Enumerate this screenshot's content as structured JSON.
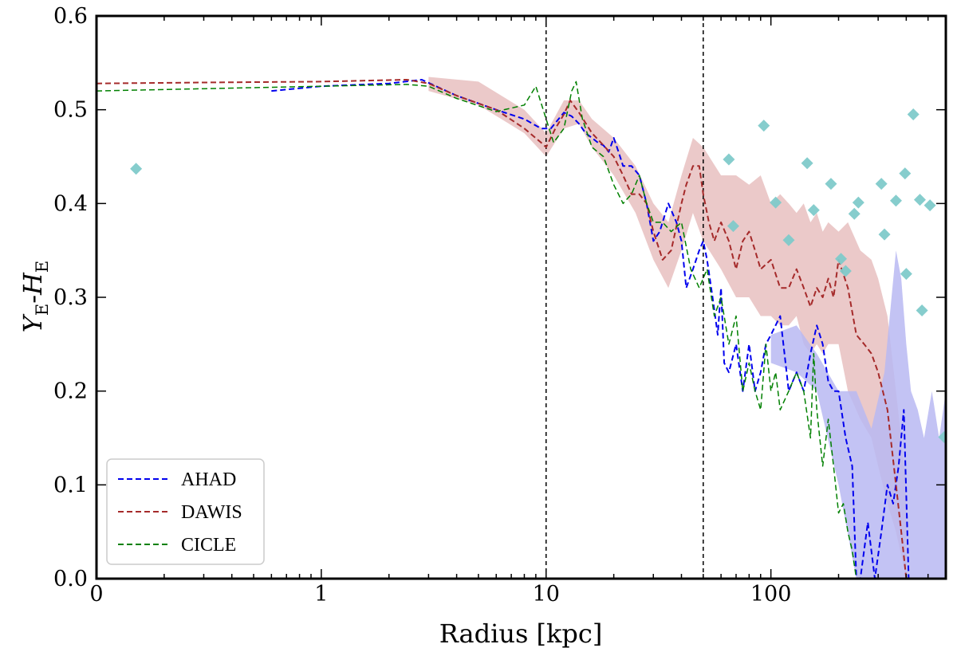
{
  "chart_data": {
    "type": "line",
    "xscale": "log",
    "xlim": [
      0.1,
      600
    ],
    "ylim": [
      0.0,
      0.6
    ],
    "xlabel": "Radius [kpc]",
    "ylabel": {
      "y": "Y",
      "ysub": "E",
      "sep": "-",
      "h": "H",
      "hsub": "E"
    },
    "xticks": [
      {
        "value": 0.1,
        "label": "0"
      },
      {
        "value": 1,
        "label": "1"
      },
      {
        "value": 10,
        "label": "10"
      },
      {
        "value": 100,
        "label": "100"
      }
    ],
    "yticks": [
      0.0,
      0.1,
      0.2,
      0.3,
      0.4,
      0.5,
      0.6
    ],
    "ytick_labels": [
      "0.0",
      "0.1",
      "0.2",
      "0.3",
      "0.4",
      "0.5",
      "0.6"
    ],
    "vlines": [
      10,
      50
    ],
    "legend_position": "lower-left",
    "colors": {
      "ahad": "#0000ee",
      "ahad_band": "#b8b8f2",
      "dawis": "#a52a2a",
      "dawis_band": "#e8c0c0",
      "cicle": "#008000",
      "scatter": "#7fcaca",
      "vline": "#000000"
    },
    "series": [
      {
        "name": "AHAD",
        "style": "dashed",
        "x": [
          0.6,
          1,
          2,
          2.8,
          4,
          6,
          8,
          9.5,
          10.5,
          12,
          13,
          14,
          15,
          16,
          17,
          18,
          19,
          20,
          21,
          22,
          24,
          26,
          28,
          30,
          32,
          35,
          38,
          40,
          42,
          45,
          48,
          50,
          52,
          55,
          58,
          60,
          62,
          65,
          70,
          75,
          80,
          85,
          90,
          95,
          100,
          110,
          120,
          130,
          140,
          150,
          160,
          170,
          180,
          190,
          200,
          215,
          230,
          240,
          250,
          270,
          290,
          310,
          330,
          350,
          370,
          390,
          410
        ],
        "y": [
          0.52,
          0.525,
          0.528,
          0.532,
          0.515,
          0.5,
          0.49,
          0.48,
          0.48,
          0.497,
          0.493,
          0.485,
          0.475,
          0.47,
          0.465,
          0.462,
          0.455,
          0.47,
          0.455,
          0.44,
          0.44,
          0.43,
          0.4,
          0.36,
          0.37,
          0.4,
          0.38,
          0.36,
          0.31,
          0.33,
          0.35,
          0.36,
          0.34,
          0.3,
          0.26,
          0.31,
          0.23,
          0.22,
          0.25,
          0.2,
          0.25,
          0.2,
          0.22,
          0.25,
          0.26,
          0.28,
          0.2,
          0.22,
          0.2,
          0.24,
          0.27,
          0.25,
          0.21,
          0.2,
          0.2,
          0.15,
          0.12,
          0.0,
          0.0,
          0.06,
          0.0,
          0.05,
          0.1,
          0.08,
          0.12,
          0.18,
          0.0
        ]
      },
      {
        "name": "DAWIS",
        "style": "dashed",
        "x": [
          0.1,
          0.3,
          1,
          2.4,
          3,
          4,
          6,
          8,
          9.5,
          10,
          11,
          12,
          12.8,
          14,
          16,
          18,
          20,
          22,
          24,
          26,
          28,
          30,
          33,
          36,
          40,
          42,
          45,
          48,
          50,
          53,
          56,
          60,
          65,
          70,
          75,
          80,
          85,
          90,
          100,
          110,
          120,
          130,
          140,
          150,
          160,
          170,
          180,
          190,
          200,
          220,
          240,
          260,
          280,
          300,
          330,
          360,
          380,
          400
        ],
        "y": [
          0.528,
          0.529,
          0.53,
          0.532,
          0.528,
          0.515,
          0.5,
          0.48,
          0.465,
          0.46,
          0.48,
          0.495,
          0.51,
          0.497,
          0.475,
          0.462,
          0.45,
          0.43,
          0.41,
          0.41,
          0.4,
          0.37,
          0.34,
          0.35,
          0.4,
          0.42,
          0.44,
          0.44,
          0.41,
          0.38,
          0.36,
          0.38,
          0.36,
          0.33,
          0.36,
          0.37,
          0.35,
          0.33,
          0.34,
          0.31,
          0.31,
          0.33,
          0.31,
          0.29,
          0.31,
          0.3,
          0.32,
          0.3,
          0.34,
          0.31,
          0.26,
          0.25,
          0.24,
          0.22,
          0.18,
          0.1,
          0.05,
          0.0
        ]
      },
      {
        "name": "CICLE",
        "style": "dashed",
        "x": [
          0.1,
          1,
          2.4,
          3,
          4,
          6,
          8,
          9,
          10,
          10.8,
          12,
          13,
          13.6,
          14.5,
          16,
          18,
          20,
          22,
          24,
          26,
          28,
          30,
          33,
          36,
          40,
          44,
          48,
          52,
          56,
          60,
          65,
          70,
          75,
          80,
          85,
          90,
          95,
          100,
          105,
          110,
          120,
          130,
          140,
          150,
          155,
          160,
          170,
          180,
          190,
          200,
          210,
          220,
          230,
          240
        ],
        "y": [
          0.52,
          0.525,
          0.527,
          0.525,
          0.512,
          0.498,
          0.505,
          0.525,
          0.49,
          0.465,
          0.48,
          0.52,
          0.53,
          0.49,
          0.46,
          0.45,
          0.42,
          0.4,
          0.41,
          0.43,
          0.4,
          0.38,
          0.38,
          0.37,
          0.38,
          0.33,
          0.31,
          0.33,
          0.28,
          0.3,
          0.25,
          0.28,
          0.2,
          0.23,
          0.2,
          0.18,
          0.25,
          0.2,
          0.22,
          0.18,
          0.2,
          0.22,
          0.2,
          0.15,
          0.24,
          0.18,
          0.12,
          0.17,
          0.12,
          0.07,
          0.08,
          0.05,
          0.03,
          0.0
        ]
      }
    ],
    "bands": [
      {
        "name": "DAWIS-band",
        "x": [
          3,
          5,
          8,
          10,
          12,
          14,
          16,
          20,
          25,
          30,
          35,
          40,
          45,
          50,
          60,
          70,
          80,
          90,
          100,
          110,
          120,
          130,
          140,
          150,
          160,
          170,
          180,
          200,
          220,
          250,
          280,
          300,
          330,
          360,
          400
        ],
        "lower": [
          0.52,
          0.505,
          0.475,
          0.45,
          0.48,
          0.485,
          0.46,
          0.43,
          0.39,
          0.34,
          0.31,
          0.35,
          0.39,
          0.36,
          0.33,
          0.3,
          0.3,
          0.28,
          0.28,
          0.27,
          0.27,
          0.28,
          0.25,
          0.24,
          0.25,
          0.24,
          0.25,
          0.25,
          0.2,
          0.17,
          0.15,
          0.12,
          0.08,
          0.05,
          0.0
        ],
        "upper": [
          0.535,
          0.53,
          0.5,
          0.475,
          0.51,
          0.51,
          0.49,
          0.47,
          0.44,
          0.4,
          0.38,
          0.43,
          0.47,
          0.46,
          0.43,
          0.43,
          0.42,
          0.43,
          0.4,
          0.41,
          0.4,
          0.39,
          0.4,
          0.38,
          0.39,
          0.37,
          0.38,
          0.37,
          0.38,
          0.35,
          0.34,
          0.32,
          0.28,
          0.2,
          0.1
        ]
      },
      {
        "name": "AHAD-band",
        "x": [
          100,
          130,
          160,
          200,
          240,
          280,
          320,
          360,
          380,
          400,
          420,
          450,
          480,
          520,
          560,
          600
        ],
        "lower": [
          0.23,
          0.22,
          0.2,
          0.1,
          0.0,
          0.0,
          0.0,
          0.0,
          0.0,
          0.0,
          0.0,
          0.0,
          0.0,
          0.0,
          0.0,
          0.0
        ],
        "upper": [
          0.26,
          0.27,
          0.24,
          0.2,
          0.2,
          0.16,
          0.22,
          0.35,
          0.32,
          0.25,
          0.2,
          0.18,
          0.15,
          0.2,
          0.15,
          0.2
        ]
      }
    ],
    "scatter": {
      "name": "points",
      "x": [
        0.15,
        65,
        68,
        93,
        105,
        120,
        145,
        155,
        185,
        205,
        215,
        235,
        245,
        310,
        320,
        360,
        395,
        400,
        430,
        460,
        470,
        510,
        590
      ],
      "y": [
        0.437,
        0.447,
        0.376,
        0.483,
        0.401,
        0.361,
        0.443,
        0.393,
        0.421,
        0.341,
        0.328,
        0.389,
        0.401,
        0.421,
        0.367,
        0.403,
        0.432,
        0.325,
        0.495,
        0.404,
        0.286,
        0.398,
        0.151
      ]
    }
  }
}
